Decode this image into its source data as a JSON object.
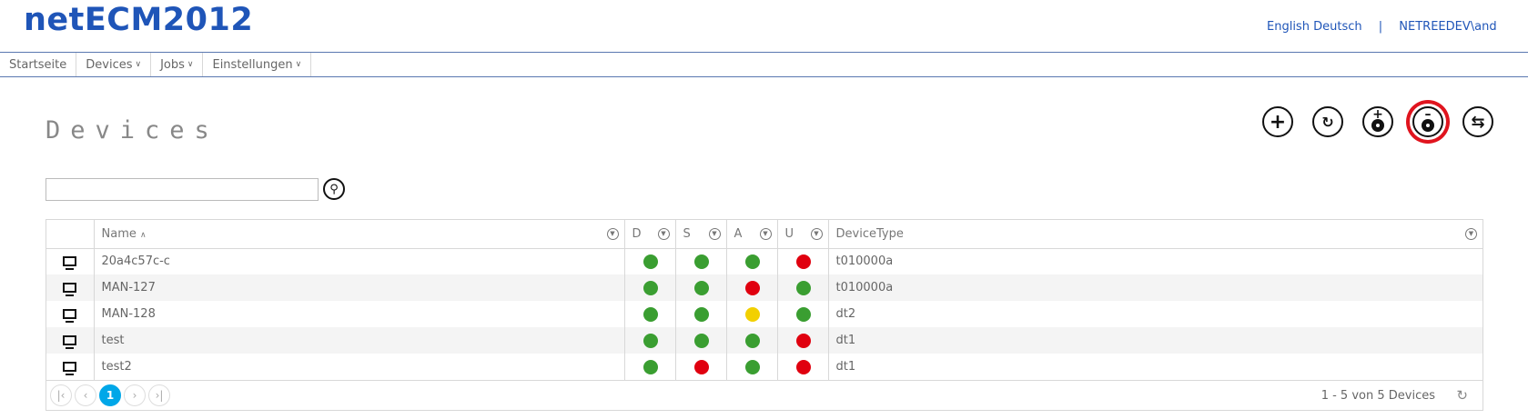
{
  "app": {
    "title": "netECM2012"
  },
  "header": {
    "languages": [
      "English",
      "Deutsch"
    ],
    "separator": "|",
    "user": "NETREEDEV\\and"
  },
  "nav": [
    {
      "label": "Startseite",
      "dropdown": false
    },
    {
      "label": "Devices",
      "dropdown": true
    },
    {
      "label": "Jobs",
      "dropdown": true
    },
    {
      "label": "Einstellungen",
      "dropdown": true
    }
  ],
  "page": {
    "title": "Devices"
  },
  "toolbar": {
    "actions": [
      {
        "icon": "plus-circle-icon"
      },
      {
        "icon": "unlock-device-icon"
      },
      {
        "icon": "add-disc-icon"
      },
      {
        "icon": "remove-disc-icon",
        "highlighted": true
      },
      {
        "icon": "refresh-circle-icon"
      }
    ]
  },
  "search": {
    "value": "",
    "placeholder": ""
  },
  "grid": {
    "columns": [
      "",
      "Name",
      "D",
      "S",
      "A",
      "U",
      "DeviceType"
    ],
    "sort_indicator": "^",
    "status_colors": {
      "green": "#3a9e31",
      "red": "#e0000f",
      "yellow": "#f2d000"
    },
    "rows": [
      {
        "name": "20a4c57c-c",
        "D": "green",
        "S": "green",
        "A": "green",
        "U": "red",
        "type": "t010000a"
      },
      {
        "name": "MAN-127",
        "D": "green",
        "S": "green",
        "A": "red",
        "U": "green",
        "type": "t010000a"
      },
      {
        "name": "MAN-128",
        "D": "green",
        "S": "green",
        "A": "yellow",
        "U": "green",
        "type": "dt2"
      },
      {
        "name": "test",
        "D": "green",
        "S": "green",
        "A": "green",
        "U": "red",
        "type": "dt1"
      },
      {
        "name": "test2",
        "D": "green",
        "S": "red",
        "A": "green",
        "U": "red",
        "type": "dt1"
      }
    ]
  },
  "pager": {
    "current_page": "1",
    "info": "1 - 5 von 5 Devices"
  }
}
